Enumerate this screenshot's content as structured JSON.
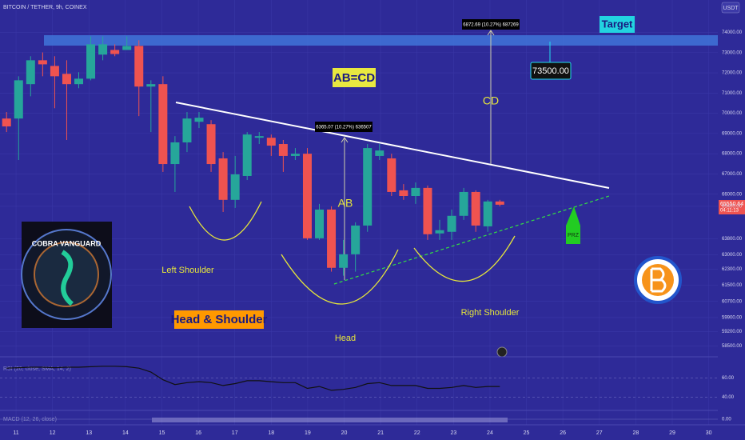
{
  "chart_data": {
    "type": "candlestick",
    "title": "BITCOIN / TETHER, 9h, COINEX",
    "currency": "USDT",
    "x": [
      10.74,
      11.07,
      11.4,
      11.73,
      12.06,
      12.39,
      12.72,
      13.05,
      13.38,
      13.71,
      14.04,
      14.37,
      14.7,
      15.03,
      15.36,
      15.69,
      16.02,
      16.35,
      16.68,
      17.01,
      17.34,
      17.67,
      18.0,
      18.33,
      18.66,
      18.99,
      19.32,
      19.65,
      19.98,
      20.31,
      20.64,
      20.97,
      21.3,
      21.63,
      21.96,
      22.29,
      22.62,
      22.95,
      23.28,
      23.61,
      23.94,
      24.27
    ],
    "open": [
      69740,
      69740,
      71440,
      72620,
      72340,
      71950,
      71440,
      71710,
      72900,
      73130,
      73130,
      73330,
      71320,
      71440,
      67490,
      68560,
      69580,
      69460,
      67770,
      65720,
      66900,
      68790,
      68790,
      68480,
      67890,
      68000,
      63820,
      65240,
      62360,
      63030,
      64450,
      67890,
      67770,
      66190,
      65910,
      66310,
      64060,
      64140,
      64930,
      66110,
      64410,
      65640
    ],
    "high": [
      70060,
      71830,
      72820,
      73010,
      72820,
      72620,
      72030,
      73800,
      73800,
      73410,
      73800,
      73610,
      71630,
      71830,
      68870,
      70060,
      70060,
      69660,
      68080,
      67890,
      69070,
      69070,
      68950,
      68680,
      68280,
      68280,
      65520,
      65400,
      63740,
      64610,
      68480,
      68480,
      68000,
      66500,
      66580,
      66430,
      64730,
      65240,
      66310,
      66190,
      65720,
      65720
    ],
    "low": [
      69070,
      67690,
      70840,
      71830,
      70250,
      68680,
      71240,
      71630,
      72620,
      72820,
      73130,
      69860,
      69070,
      67100,
      66110,
      68080,
      69270,
      67100,
      65120,
      65320,
      66700,
      68480,
      67890,
      67100,
      67690,
      63740,
      63740,
      62170,
      61970,
      62170,
      64140,
      67690,
      65910,
      65720,
      65520,
      63740,
      63740,
      63740,
      64730,
      64140,
      64140,
      65400
    ],
    "close": [
      69350,
      71630,
      72620,
      72420,
      71830,
      71440,
      71710,
      73410,
      73410,
      72930,
      73330,
      71320,
      71440,
      67490,
      68560,
      69740,
      69780,
      67490,
      65720,
      66980,
      68950,
      68870,
      68400,
      67890,
      68000,
      63820,
      65240,
      62360,
      63030,
      64450,
      68280,
      68160,
      66110,
      65910,
      66310,
      64020,
      64220,
      64930,
      66110,
      64450,
      65640,
      65480
    ],
    "up_color": "#26a69a",
    "down_color": "#ef5350",
    "xlim": [
      10.56,
      30.25
    ],
    "xticks": [
      11,
      12,
      13,
      14,
      15,
      16,
      17,
      18,
      19,
      20,
      21,
      22,
      23,
      24,
      25,
      26,
      27,
      28,
      29,
      30
    ],
    "ylim": [
      58000,
      75600
    ],
    "yticks": [
      {
        "value": 74000,
        "label": "74000.00"
      },
      {
        "value": 73000,
        "label": "73000.00"
      },
      {
        "value": 72000,
        "label": "72000.00"
      },
      {
        "value": 71000,
        "label": "71000.00"
      },
      {
        "value": 70000,
        "label": "70000.00"
      },
      {
        "value": 69000,
        "label": "69000.00"
      },
      {
        "value": 68000,
        "label": "68000.00"
      },
      {
        "value": 67000,
        "label": "67000.00"
      },
      {
        "value": 66000,
        "label": "66000.00"
      },
      {
        "value": 65400,
        "label": "65400.00"
      },
      {
        "value": 63800,
        "label": "63800.00"
      },
      {
        "value": 63000,
        "label": "63000.00"
      },
      {
        "value": 62300,
        "label": "62300.00"
      },
      {
        "value": 61500,
        "label": "61500.00"
      },
      {
        "value": 60700,
        "label": "60700.00"
      },
      {
        "value": 59900,
        "label": "59900.00"
      },
      {
        "value": 59200,
        "label": "59200.00"
      },
      {
        "value": 58500,
        "label": "58500.00"
      }
    ],
    "last_price_label": "65550.64",
    "countdown": "04:11:13",
    "annotations": {
      "pattern": "AB=CD",
      "cd": "CD",
      "ab": "AB",
      "target": "Target",
      "target_price": "73500.00",
      "cd_measure": "6872.69 (10.27%) 687269",
      "ab_measure": "6365.07 (10.27%) 636507",
      "left_shoulder": "Left Shoulder",
      "head": "Head",
      "right_shoulder": "Right Shoulder",
      "pattern_name": "Head & Shoulder",
      "prz": "PRZ",
      "logo": "COBRA VANGUARD"
    },
    "rsi": {
      "label": "RSI (20, close, SMA, 14, 2)",
      "color": "#111111",
      "values": [
        70,
        70.5,
        71,
        71,
        70.5,
        71,
        71,
        71.5,
        72,
        72,
        71.5,
        70,
        66,
        58,
        53,
        55,
        56,
        55,
        52,
        54,
        57,
        57,
        56,
        55,
        55,
        49,
        51,
        47,
        48,
        50,
        54,
        55,
        52,
        52,
        52,
        49,
        49,
        50,
        52,
        50,
        51,
        51
      ],
      "ylim": [
        27,
        81
      ],
      "yticks": [
        {
          "value": 60,
          "label": "60.00"
        },
        {
          "value": 40,
          "label": "40.00"
        }
      ]
    },
    "macd": {
      "label": "MACD (12, 26, close)",
      "yticks": [
        {
          "value": 0,
          "label": "0.00"
        }
      ]
    }
  }
}
